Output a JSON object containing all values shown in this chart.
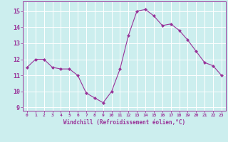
{
  "x": [
    0,
    1,
    2,
    3,
    4,
    5,
    6,
    7,
    8,
    9,
    10,
    11,
    12,
    13,
    14,
    15,
    16,
    17,
    18,
    19,
    20,
    21,
    22,
    23
  ],
  "y": [
    11.5,
    12.0,
    12.0,
    11.5,
    11.4,
    11.4,
    11.0,
    9.9,
    9.6,
    9.3,
    10.0,
    11.4,
    13.5,
    15.0,
    15.1,
    14.7,
    14.1,
    14.2,
    13.8,
    13.2,
    12.5,
    11.8,
    11.6,
    11.0
  ],
  "line_color": "#993399",
  "marker": "D",
  "marker_size": 2.0,
  "bg_color": "#cceeee",
  "grid_color": "#ffffff",
  "xlabel": "Windchill (Refroidissement éolien,°C)",
  "xlabel_color": "#993399",
  "tick_color": "#993399",
  "ylim": [
    8.8,
    15.6
  ],
  "yticks": [
    9,
    10,
    11,
    12,
    13,
    14,
    15
  ],
  "xlim": [
    -0.5,
    23.5
  ],
  "figsize": [
    3.2,
    2.0
  ],
  "dpi": 100
}
